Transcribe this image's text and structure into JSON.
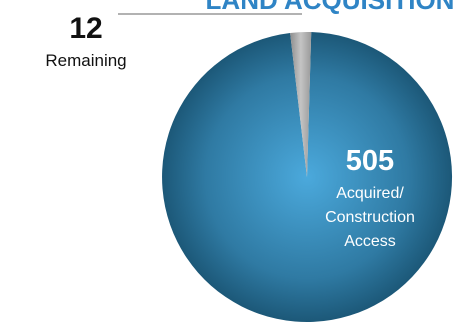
{
  "chart_data": {
    "type": "pie",
    "title": "LAND ACQUISITION",
    "slices": [
      {
        "value": 505,
        "label": "505",
        "description": [
          "Acquired/",
          "Construction",
          "Access"
        ],
        "color": "#2f6f92"
      },
      {
        "value": 12,
        "label": "12",
        "description": [
          "Remaining"
        ],
        "color": "#a8a8a8"
      }
    ],
    "colors": {
      "title": "#2f84c5",
      "dark_slice_center": "#4ba9dc",
      "dark_slice_edge": "#1c5878",
      "light_slice": "#a8a8a8"
    }
  }
}
